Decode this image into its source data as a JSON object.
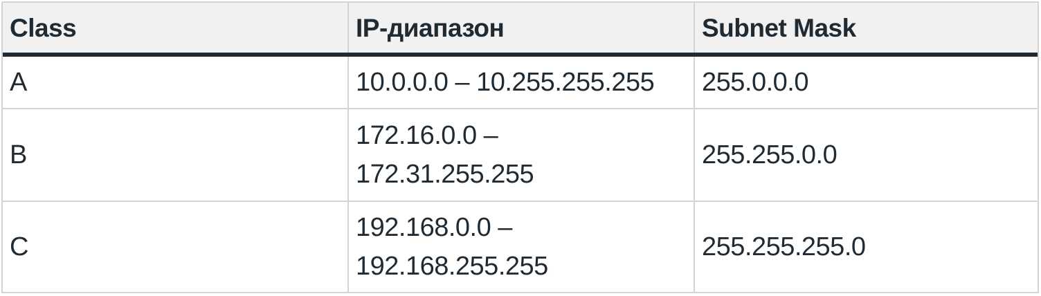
{
  "table": {
    "headers": [
      "Class",
      "IP-диапазон",
      "Subnet Mask"
    ],
    "rows": [
      {
        "class": "A",
        "range_line1": "10.0.0.0 – 10.255.255.255",
        "range_line2": "",
        "mask": "255.0.0.0"
      },
      {
        "class": "B",
        "range_line1": "172.16.0.0 –",
        "range_line2": "172.31.255.255",
        "mask": "255.255.0.0"
      },
      {
        "class": "C",
        "range_line1": "192.168.0.0 –",
        "range_line2": "192.168.255.255",
        "mask": "255.255.255.0"
      }
    ]
  },
  "colors": {
    "header_bg": "#f1f1f1",
    "header_rule": "#1f2a33",
    "grid_line": "#d3d3d3",
    "text": "#1f2a33"
  }
}
